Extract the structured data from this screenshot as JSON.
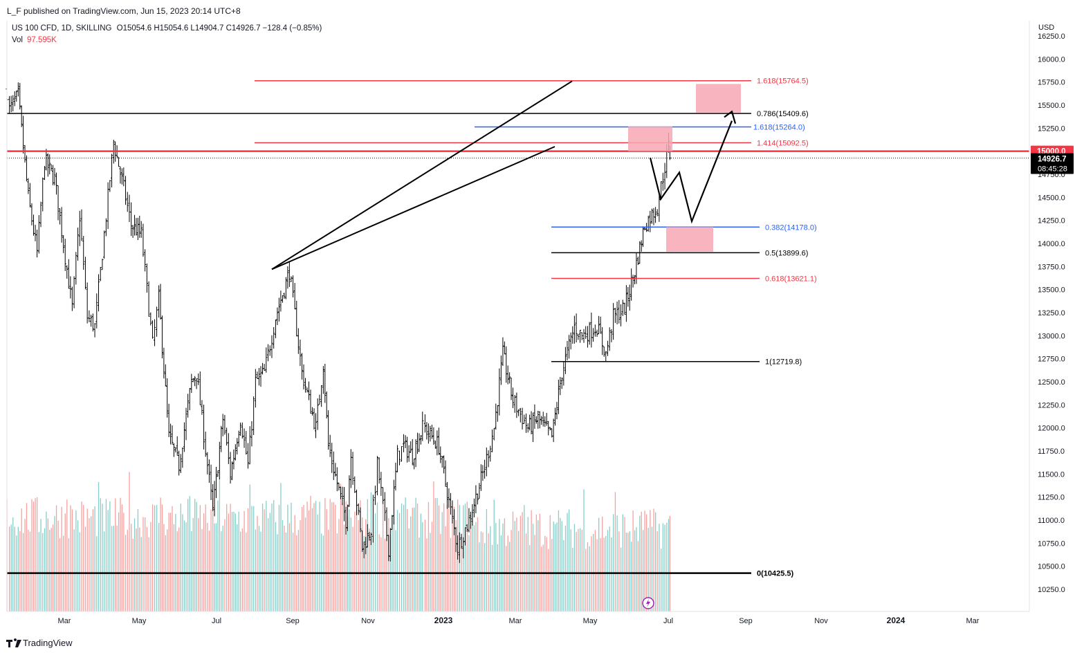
{
  "header": {
    "publisher": "L_F published on TradingView.com, Jun 15, 2023 20:14 UTC+8",
    "symbol": "US 100 CFD, 1D, SKILLING",
    "ohlc": "O15054.6  H15054.6  L14904.7  C14926.7  −128.4 (−0.85%)",
    "vol_label": "Vol",
    "vol_value": "97.595K",
    "currency": "USD"
  },
  "footer": {
    "brand": "TradingView"
  },
  "colors": {
    "up": "#26a69a",
    "down": "#ef5350",
    "bars": "#000000",
    "red_level": "#f23645",
    "blue_level": "#2962ff",
    "black_level": "#000000",
    "zone_fill": "#f7a8b4"
  },
  "chart_data": {
    "type": "candlestick",
    "title": "US 100 CFD, 1D, SKILLING",
    "ylim": [
      10050,
      16500
    ],
    "y_ticks": [
      "16250.0",
      "16000.0",
      "15750.0",
      "15500.0",
      "15250.0",
      "15000.0",
      "14750.0",
      "14500.0",
      "14250.0",
      "14000.0",
      "13750.0",
      "13500.0",
      "13250.0",
      "13000.0",
      "12750.0",
      "12500.0",
      "12250.0",
      "12000.0",
      "11750.0",
      "11500.0",
      "11250.0",
      "11000.0",
      "10750.0",
      "10500.0",
      "10250.0"
    ],
    "x_ticks": [
      {
        "label": "Mar",
        "bold": false
      },
      {
        "label": "May",
        "bold": false
      },
      {
        "label": "Jul",
        "bold": false
      },
      {
        "label": "Sep",
        "bold": false
      },
      {
        "label": "Nov",
        "bold": false
      },
      {
        "label": "2023",
        "bold": true
      },
      {
        "label": "Mar",
        "bold": false
      },
      {
        "label": "May",
        "bold": false
      },
      {
        "label": "Jul",
        "bold": false
      },
      {
        "label": "Sep",
        "bold": false
      },
      {
        "label": "Nov",
        "bold": false
      },
      {
        "label": "2024",
        "bold": true
      },
      {
        "label": "Mar",
        "bold": false
      }
    ],
    "last_price": "14926.7",
    "countdown": "08:45:28",
    "marked_level": "15000.0",
    "price_path": [
      [
        "2022-01-03",
        15650
      ],
      [
        "2022-01-05",
        15450
      ],
      [
        "2022-01-12",
        15600
      ],
      [
        "2022-01-20",
        14500
      ],
      [
        "2022-01-27",
        13900
      ],
      [
        "2022-02-02",
        14900
      ],
      [
        "2022-02-10",
        14700
      ],
      [
        "2022-02-24",
        13300
      ],
      [
        "2022-03-02",
        14300
      ],
      [
        "2022-03-08",
        13200
      ],
      [
        "2022-03-14",
        13100
      ],
      [
        "2022-03-29",
        15100
      ],
      [
        "2022-04-06",
        14600
      ],
      [
        "2022-04-12",
        14200
      ],
      [
        "2022-04-20",
        14100
      ],
      [
        "2022-04-29",
        12900
      ],
      [
        "2022-05-04",
        13400
      ],
      [
        "2022-05-12",
        11900
      ],
      [
        "2022-05-20",
        11600
      ],
      [
        "2022-05-30",
        12500
      ],
      [
        "2022-06-03",
        12600
      ],
      [
        "2022-06-16",
        11100
      ],
      [
        "2022-06-24",
        12100
      ],
      [
        "2022-06-30",
        11500
      ],
      [
        "2022-07-08",
        12100
      ],
      [
        "2022-07-14",
        11600
      ],
      [
        "2022-07-20",
        12500
      ],
      [
        "2022-07-27",
        12600
      ],
      [
        "2022-08-05",
        13200
      ],
      [
        "2022-08-16",
        13700
      ],
      [
        "2022-08-26",
        12600
      ],
      [
        "2022-09-06",
        12000
      ],
      [
        "2022-09-12",
        12700
      ],
      [
        "2022-09-16",
        11800
      ],
      [
        "2022-09-30",
        11000
      ],
      [
        "2022-10-04",
        11700
      ],
      [
        "2022-10-13",
        10700
      ],
      [
        "2022-10-20",
        10900
      ],
      [
        "2022-10-25",
        11600
      ],
      [
        "2022-11-03",
        10700
      ],
      [
        "2022-11-10",
        11700
      ],
      [
        "2022-11-15",
        11800
      ],
      [
        "2022-11-22",
        11700
      ],
      [
        "2022-11-30",
        12000
      ],
      [
        "2022-12-02",
        12000
      ],
      [
        "2022-12-13",
        11800
      ],
      [
        "2022-12-21",
        11200
      ],
      [
        "2022-12-28",
        10700
      ],
      [
        "2023-01-06",
        11000
      ],
      [
        "2023-01-17",
        11500
      ],
      [
        "2023-01-26",
        12000
      ],
      [
        "2023-02-02",
        12800
      ],
      [
        "2023-02-10",
        12300
      ],
      [
        "2023-02-22",
        12000
      ],
      [
        "2023-03-02",
        12100
      ],
      [
        "2023-03-13",
        11900
      ],
      [
        "2023-03-21",
        12600
      ],
      [
        "2023-03-31",
        13100
      ],
      [
        "2023-04-06",
        13000
      ],
      [
        "2023-04-18",
        13100
      ],
      [
        "2023-04-25",
        12800
      ],
      [
        "2023-05-01",
        13200
      ],
      [
        "2023-05-10",
        13300
      ],
      [
        "2023-05-18",
        13700
      ],
      [
        "2023-05-26",
        14200
      ],
      [
        "2023-06-05",
        14400
      ],
      [
        "2023-06-14",
        15050
      ],
      [
        "2023-06-15",
        14926.7
      ]
    ],
    "price_range": [
      10425,
      16200
    ],
    "levels": [
      {
        "label": "1.618(15764.5)",
        "value": 15764.5,
        "color": "#f23645"
      },
      {
        "label": "0.786(15409.6)",
        "value": 15409.6,
        "color": "#000000"
      },
      {
        "label": "1.618(15264.0)",
        "value": 15264.0,
        "color": "#2962ff"
      },
      {
        "label": "1.414(15092.5)",
        "value": 15092.5,
        "color": "#f23645"
      },
      {
        "label": "0.382(14178.0)",
        "value": 14178.0,
        "color": "#2962ff"
      },
      {
        "label": "0.5(13899.6)",
        "value": 13899.6,
        "color": "#000000"
      },
      {
        "label": "0.618(13621.1)",
        "value": 13621.1,
        "color": "#f23645"
      },
      {
        "label": "1(12719.8)",
        "value": 12719.8,
        "color": "#000000"
      },
      {
        "label": "0(10425.5)",
        "value": 10425.5,
        "color": "#000000"
      }
    ]
  }
}
